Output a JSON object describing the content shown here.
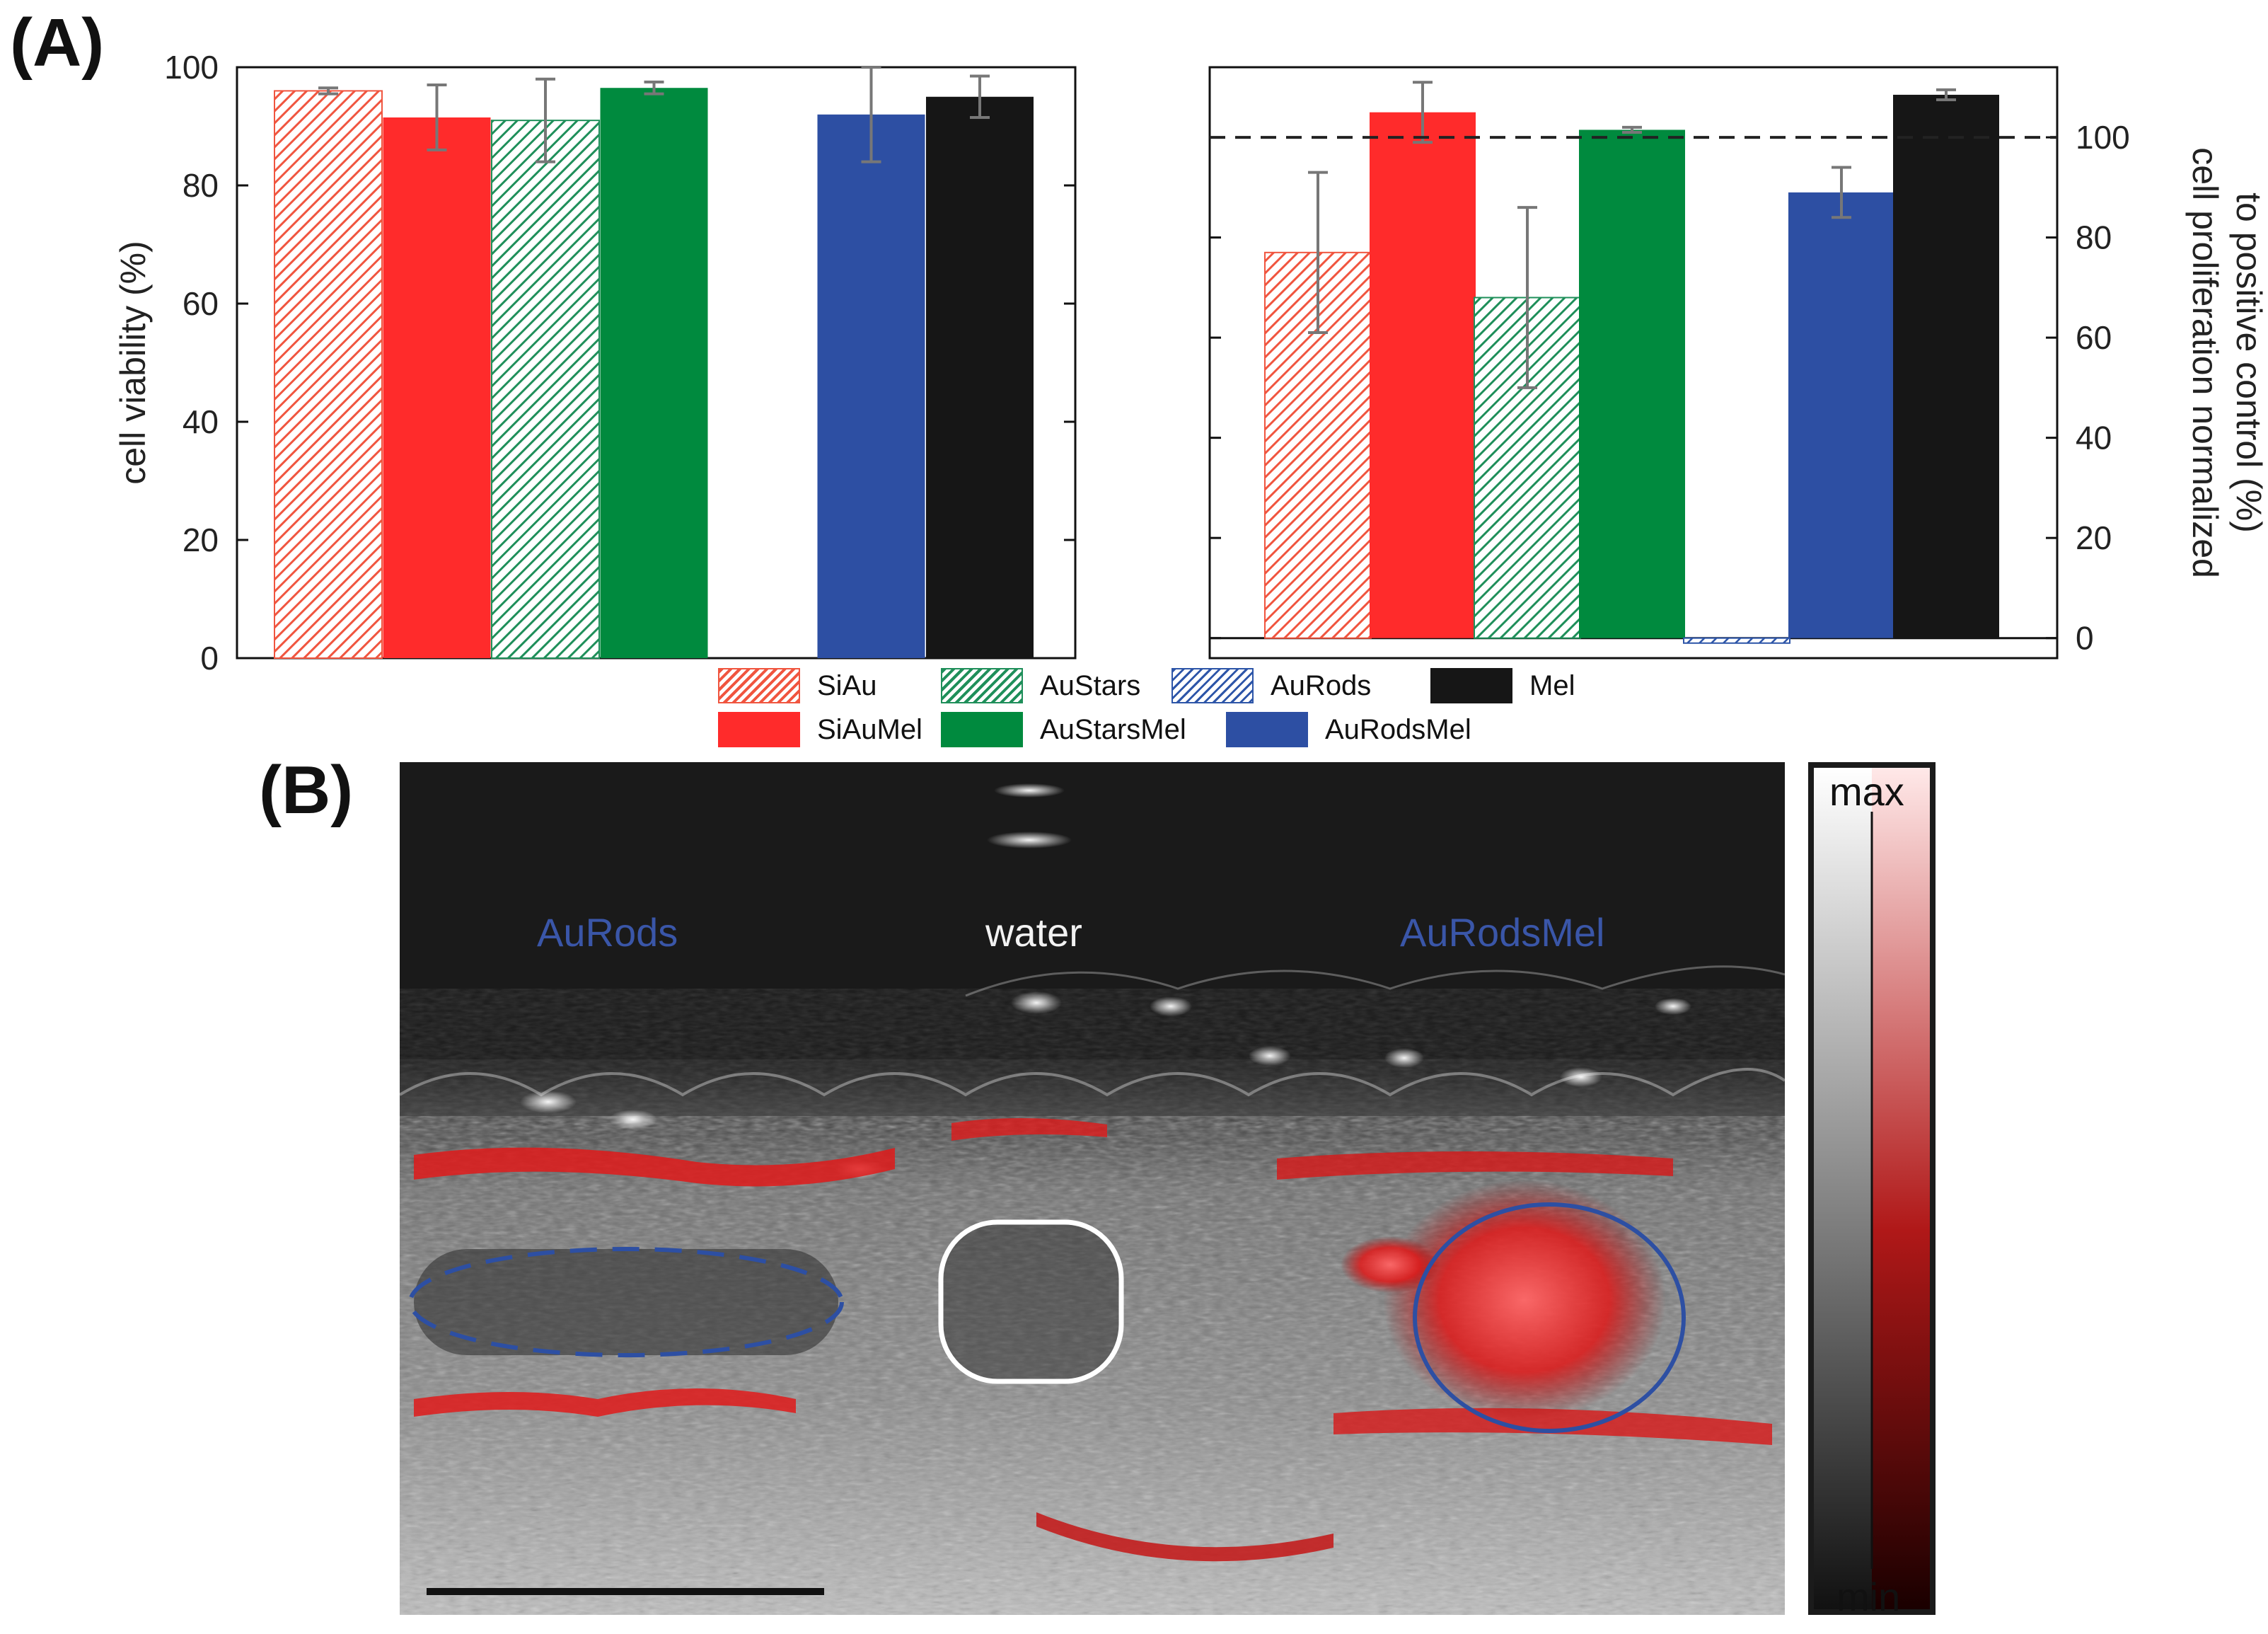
{
  "panels": {
    "a_label": "(A)",
    "b_label": "(B)"
  },
  "colors": {
    "SiAu": "#f0553f",
    "SiAuMel": "#ff2b2b",
    "AuStars": "#1f8f5a",
    "AuStarsMel": "#008a3e",
    "AuRods": "#2d55a8",
    "AuRodsMel": "#2d4fa3",
    "Mel": "#161616"
  },
  "legend": [
    {
      "key": "SiAu",
      "label": "SiAu",
      "hatched": true
    },
    {
      "key": "AuStars",
      "label": "AuStars",
      "hatched": true
    },
    {
      "key": "AuRods",
      "label": "AuRods",
      "hatched": true
    },
    {
      "key": "Mel",
      "label": "Mel",
      "hatched": false
    },
    {
      "key": "SiAuMel",
      "label": "SiAuMel",
      "hatched": false
    },
    {
      "key": "AuStarsMel",
      "label": "AuStarsMel",
      "hatched": false
    },
    {
      "key": "AuRodsMel",
      "label": "AuRodsMel",
      "hatched": false
    }
  ],
  "chart_data": [
    {
      "type": "bar",
      "ylabel": "cell viability (%)",
      "ylim": [
        0,
        100
      ],
      "yticks": [
        "0",
        "20",
        "40",
        "60",
        "80",
        "100"
      ],
      "axis_side": "left",
      "reference_line": null,
      "bars": [
        {
          "key": "SiAu",
          "value": 96,
          "err": 0.5
        },
        {
          "key": "SiAuMel",
          "value": 91.5,
          "err": 5.5
        },
        {
          "key": "AuStars",
          "value": 91,
          "err": 7
        },
        {
          "key": "AuStarsMel",
          "value": 96.5,
          "err": 1
        },
        {
          "key": "AuRods",
          "value": null,
          "err": null
        },
        {
          "key": "AuRodsMel",
          "value": 92,
          "err": 8
        },
        {
          "key": "Mel",
          "value": 95,
          "err": 3.5
        }
      ]
    },
    {
      "type": "bar",
      "ylabel": "cell proliferation normalized to positive control (%)",
      "ylabel_lines": [
        "cell proliferation normalized",
        "to positive control (%)"
      ],
      "ylim": [
        -4,
        114
      ],
      "yticks": [
        "0",
        "20",
        "40",
        "60",
        "80",
        "100"
      ],
      "axis_side": "right",
      "reference_line": 100,
      "bars": [
        {
          "key": "SiAu",
          "value": 77,
          "err": 16
        },
        {
          "key": "SiAuMel",
          "value": 105,
          "err": 6
        },
        {
          "key": "AuStars",
          "value": 68,
          "err": 18
        },
        {
          "key": "AuStarsMel",
          "value": 101.5,
          "err": 0.5
        },
        {
          "key": "AuRods",
          "value": -1,
          "err": null
        },
        {
          "key": "AuRodsMel",
          "value": 89,
          "err": 5
        },
        {
          "key": "Mel",
          "value": 108.5,
          "err": 1
        }
      ]
    }
  ],
  "ultrasound": {
    "labels": [
      {
        "text": "AuRods",
        "color": "#3a56a8"
      },
      {
        "text": "water",
        "color": "#f2f2f2"
      },
      {
        "text": "AuRodsMel",
        "color": "#3a56a8"
      }
    ],
    "colorbar": {
      "max_label": "max",
      "min_label": "min"
    }
  }
}
